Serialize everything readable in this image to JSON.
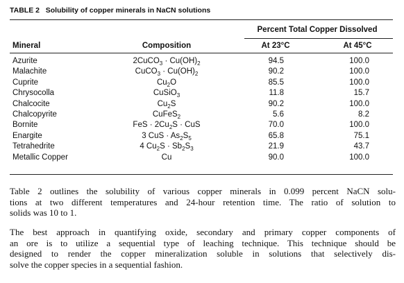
{
  "header": {
    "label": "TABLE 2",
    "title": "Solubility of copper minerals in NaCN solutions"
  },
  "table": {
    "group_header": "Percent Total Copper Dissolved",
    "columns": [
      "Mineral",
      "Composition",
      "At 23°C",
      "At 45°C"
    ],
    "rows": [
      {
        "mineral": "Azurite",
        "composition": [
          "2CuCO",
          "3",
          " · Cu(OH)",
          "2"
        ],
        "t23": "94.5",
        "t45": "100.0"
      },
      {
        "mineral": "Malachite",
        "composition": [
          "CuCO",
          "3",
          " · Cu(OH)",
          "2"
        ],
        "t23": "90.2",
        "t45": "100.0"
      },
      {
        "mineral": "Cuprite",
        "composition": [
          "Cu",
          "2",
          "O"
        ],
        "t23": "85.5",
        "t45": "100.0"
      },
      {
        "mineral": "Chrysocolla",
        "composition": [
          "CuSiO",
          "3"
        ],
        "t23": "11.8",
        "t45": "15.7"
      },
      {
        "mineral": "Chalcocite",
        "composition": [
          "Cu",
          "2",
          "S"
        ],
        "t23": "90.2",
        "t45": "100.0"
      },
      {
        "mineral": "Chalcopyrite",
        "composition": [
          "CuFeS",
          "2"
        ],
        "t23": "5.6",
        "t45": "8.2"
      },
      {
        "mineral": "Bornite",
        "composition": [
          "FeS · 2Cu",
          "2",
          "S · CuS"
        ],
        "t23": "70.0",
        "t45": "100.0"
      },
      {
        "mineral": "Enargite",
        "composition": [
          "3 CuS · As",
          "2",
          "S",
          "5"
        ],
        "t23": "65.8",
        "t45": "75.1"
      },
      {
        "mineral": "Tetrahedrite",
        "composition": [
          "4 Cu",
          "2",
          "S · Sb",
          "2",
          "S",
          "3"
        ],
        "t23": "21.9",
        "t45": "43.7"
      },
      {
        "mineral": "Metallic Copper",
        "composition": [
          "Cu"
        ],
        "t23": "90.0",
        "t45": "100.0"
      }
    ]
  },
  "paragraphs": [
    [
      "Table 2 outlines the solubility of various copper minerals in 0.099 percent NaCN solu-",
      "tions at two different temperatures and 24-hour retention time. The ratio of solution to",
      "solids was 10 to 1."
    ],
    [
      "The best approach in quantifying oxide, secondary and primary copper components of",
      "an ore is to utilize a sequential type of leaching technique. This technique should be",
      "designed to render the copper mineralization soluble in solutions that selectively dis-",
      "solve the copper species in a sequential fashion."
    ]
  ]
}
